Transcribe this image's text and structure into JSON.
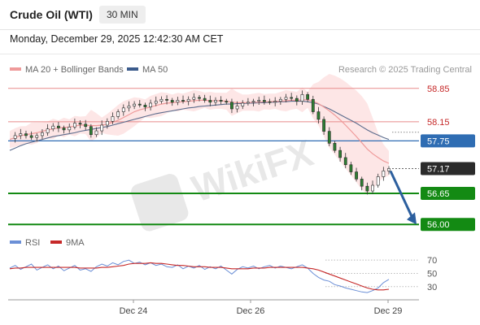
{
  "header": {
    "title": "Crude Oil (WTI)",
    "timeframe": "30 MIN",
    "datetime": "Monday, December 29, 2025 12:42:30 AM CET"
  },
  "legend": {
    "ma20_label": "MA 20 + Bollinger Bands",
    "ma50_label": "MA 50",
    "credit": "Research © 2025 Trading Central",
    "rsi_label": "RSI",
    "ma9_label": "9MA"
  },
  "watermark": "WikiFX",
  "colors": {
    "resistance": "#e88b8b",
    "resistance_text": "#c62828",
    "pivot_blue": "#2f6db3",
    "support_green": "#138a13",
    "last_price_bg": "#2b2b2b",
    "candle": "#2e7d32",
    "ma20": "#ef9a9a",
    "bollinger_fill": "#fde2e2",
    "ma50": "#5b6b8c",
    "arrow": "#2c5f9e",
    "rsi_line": "#6b8fd6",
    "rsi_ma": "#c62828"
  },
  "chart_data": [
    {
      "type": "candlestick",
      "title": "Crude Oil (WTI)",
      "timeframe": "30 MIN",
      "ylim": [
        55.85,
        59.05
      ],
      "x_ticks": [
        "Dec 24",
        "Dec 26",
        "Dec 29"
      ],
      "levels": [
        {
          "value": 58.85,
          "label": "58.85",
          "kind": "resistance"
        },
        {
          "value": 58.15,
          "label": "58.15",
          "kind": "resistance"
        },
        {
          "value": 57.75,
          "label": "57.75",
          "kind": "pivot"
        },
        {
          "value": 57.17,
          "label": "57.17",
          "kind": "last"
        },
        {
          "value": 56.65,
          "label": "56.65",
          "kind": "support"
        },
        {
          "value": 56.0,
          "label": "56.00",
          "kind": "support"
        }
      ],
      "last_price": 57.17,
      "forecast_arrow": {
        "from": 57.17,
        "to": 56.0,
        "direction": "down"
      },
      "price_path": [
        57.8,
        57.86,
        57.9,
        57.86,
        57.82,
        57.86,
        57.92,
        58.0,
        58.06,
        58.02,
        57.98,
        58.04,
        58.12,
        58.1,
        58.05,
        57.88,
        57.96,
        58.08,
        58.16,
        58.26,
        58.36,
        58.44,
        58.48,
        58.52,
        58.5,
        58.46,
        58.54,
        58.58,
        58.62,
        58.6,
        58.56,
        58.6,
        58.58,
        58.62,
        58.66,
        58.64,
        58.6,
        58.56,
        58.6,
        58.58,
        58.56,
        58.42,
        58.48,
        58.54,
        58.56,
        58.58,
        58.6,
        58.57,
        58.56,
        58.58,
        58.62,
        58.66,
        58.64,
        58.58,
        58.72,
        58.62,
        58.36,
        58.2,
        57.95,
        57.7,
        57.55,
        57.4,
        57.25,
        57.1,
        56.95,
        56.8,
        56.7,
        56.82,
        57.0,
        57.12,
        57.17
      ],
      "ma20": [
        57.78,
        57.82,
        57.86,
        57.88,
        57.9,
        57.92,
        57.95,
        57.98,
        58.0,
        58.02,
        58.03,
        58.04,
        58.06,
        58.08,
        58.08,
        58.07,
        58.07,
        58.08,
        58.1,
        58.14,
        58.18,
        58.24,
        58.3,
        58.36,
        58.4,
        58.43,
        58.46,
        58.49,
        58.52,
        58.54,
        58.55,
        58.56,
        58.57,
        58.58,
        58.59,
        58.6,
        58.6,
        58.59,
        58.59,
        58.59,
        58.58,
        58.56,
        58.55,
        58.55,
        58.55,
        58.56,
        58.56,
        58.57,
        58.57,
        58.58,
        58.58,
        58.59,
        58.6,
        58.6,
        58.61,
        58.61,
        58.58,
        58.53,
        58.46,
        58.38,
        58.29,
        58.19,
        58.08,
        57.96,
        57.84,
        57.71,
        57.58,
        57.48,
        57.4,
        57.33,
        57.28
      ],
      "ma50": [
        57.55,
        57.6,
        57.65,
        57.69,
        57.72,
        57.75,
        57.78,
        57.81,
        57.84,
        57.86,
        57.88,
        57.9,
        57.92,
        57.95,
        57.97,
        57.99,
        58.01,
        58.03,
        58.05,
        58.08,
        58.11,
        58.14,
        58.17,
        58.2,
        58.23,
        58.26,
        58.29,
        58.32,
        58.34,
        58.36,
        58.38,
        58.4,
        58.42,
        58.44,
        58.45,
        58.47,
        58.48,
        58.49,
        58.5,
        58.51,
        58.52,
        58.52,
        58.53,
        58.53,
        58.54,
        58.54,
        58.55,
        58.55,
        58.56,
        58.56,
        58.57,
        58.57,
        58.58,
        58.58,
        58.58,
        58.57,
        58.55,
        58.52,
        58.47,
        58.42,
        58.36,
        58.3,
        58.24,
        58.18,
        58.12,
        58.05,
        57.98,
        57.92,
        57.87,
        57.82,
        57.78
      ]
    },
    {
      "type": "line",
      "title": "RSI",
      "ylim": [
        15,
        80
      ],
      "y_ticks": [
        30,
        50,
        70
      ],
      "series": [
        {
          "name": "RSI",
          "values": [
            58,
            62,
            56,
            60,
            64,
            55,
            59,
            63,
            57,
            61,
            54,
            58,
            62,
            55,
            57,
            53,
            60,
            64,
            61,
            66,
            63,
            68,
            70,
            65,
            67,
            63,
            66,
            62,
            64,
            60,
            59,
            63,
            57,
            61,
            58,
            62,
            56,
            60,
            57,
            61,
            55,
            49,
            56,
            60,
            58,
            61,
            57,
            60,
            62,
            58,
            61,
            59,
            57,
            60,
            63,
            58,
            50,
            44,
            40,
            38,
            33,
            31,
            28,
            26,
            24,
            22,
            21,
            24,
            28,
            36,
            41
          ]
        },
        {
          "name": "9MA",
          "values": [
            57,
            58,
            58,
            59,
            59,
            59,
            59,
            59,
            59,
            59,
            59,
            59,
            59,
            58,
            58,
            58,
            58,
            59,
            59,
            60,
            61,
            62,
            64,
            65,
            65,
            65,
            66,
            65,
            65,
            64,
            63,
            62,
            62,
            61,
            60,
            60,
            60,
            59,
            59,
            59,
            58,
            57,
            57,
            57,
            57,
            58,
            58,
            58,
            59,
            59,
            59,
            59,
            59,
            59,
            59,
            58,
            57,
            55,
            52,
            49,
            46,
            43,
            40,
            37,
            34,
            31,
            28,
            26,
            25,
            25,
            26
          ]
        }
      ]
    }
  ]
}
